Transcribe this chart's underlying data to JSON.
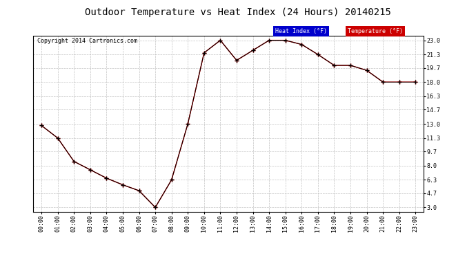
{
  "title": "Outdoor Temperature vs Heat Index (24 Hours) 20140215",
  "copyright": "Copyright 2014 Cartronics.com",
  "hours": [
    "00:00",
    "01:00",
    "02:00",
    "03:00",
    "04:00",
    "05:00",
    "06:00",
    "07:00",
    "08:00",
    "09:00",
    "10:00",
    "11:00",
    "12:00",
    "13:00",
    "14:00",
    "15:00",
    "16:00",
    "17:00",
    "18:00",
    "19:00",
    "20:00",
    "21:00",
    "22:00",
    "23:00"
  ],
  "temperature": [
    12.8,
    11.3,
    8.5,
    7.5,
    6.5,
    5.7,
    5.0,
    3.0,
    6.3,
    13.0,
    21.5,
    23.0,
    20.6,
    21.8,
    23.0,
    23.0,
    22.5,
    21.3,
    20.0,
    20.0,
    19.4,
    18.0,
    18.0,
    18.0
  ],
  "heat_index": [
    12.8,
    11.3,
    8.5,
    7.5,
    6.5,
    5.7,
    5.0,
    3.0,
    6.3,
    13.0,
    21.5,
    23.0,
    20.6,
    21.8,
    23.0,
    23.0,
    22.5,
    21.3,
    20.0,
    20.0,
    19.4,
    18.0,
    18.0,
    18.0
  ],
  "temp_color": "#ff0000",
  "heat_index_color": "#000000",
  "yticks": [
    3.0,
    4.7,
    6.3,
    8.0,
    9.7,
    11.3,
    13.0,
    14.7,
    16.3,
    18.0,
    19.7,
    21.3,
    23.0
  ],
  "ylim": [
    2.5,
    23.5
  ],
  "background_color": "#ffffff",
  "plot_background": "#ffffff",
  "grid_color": "#bbbbbb",
  "title_fontsize": 10,
  "tick_fontsize": 6,
  "copyright_fontsize": 6,
  "legend_heat_bg": "#0000cc",
  "legend_temp_bg": "#cc0000",
  "legend_text_color": "#ffffff"
}
